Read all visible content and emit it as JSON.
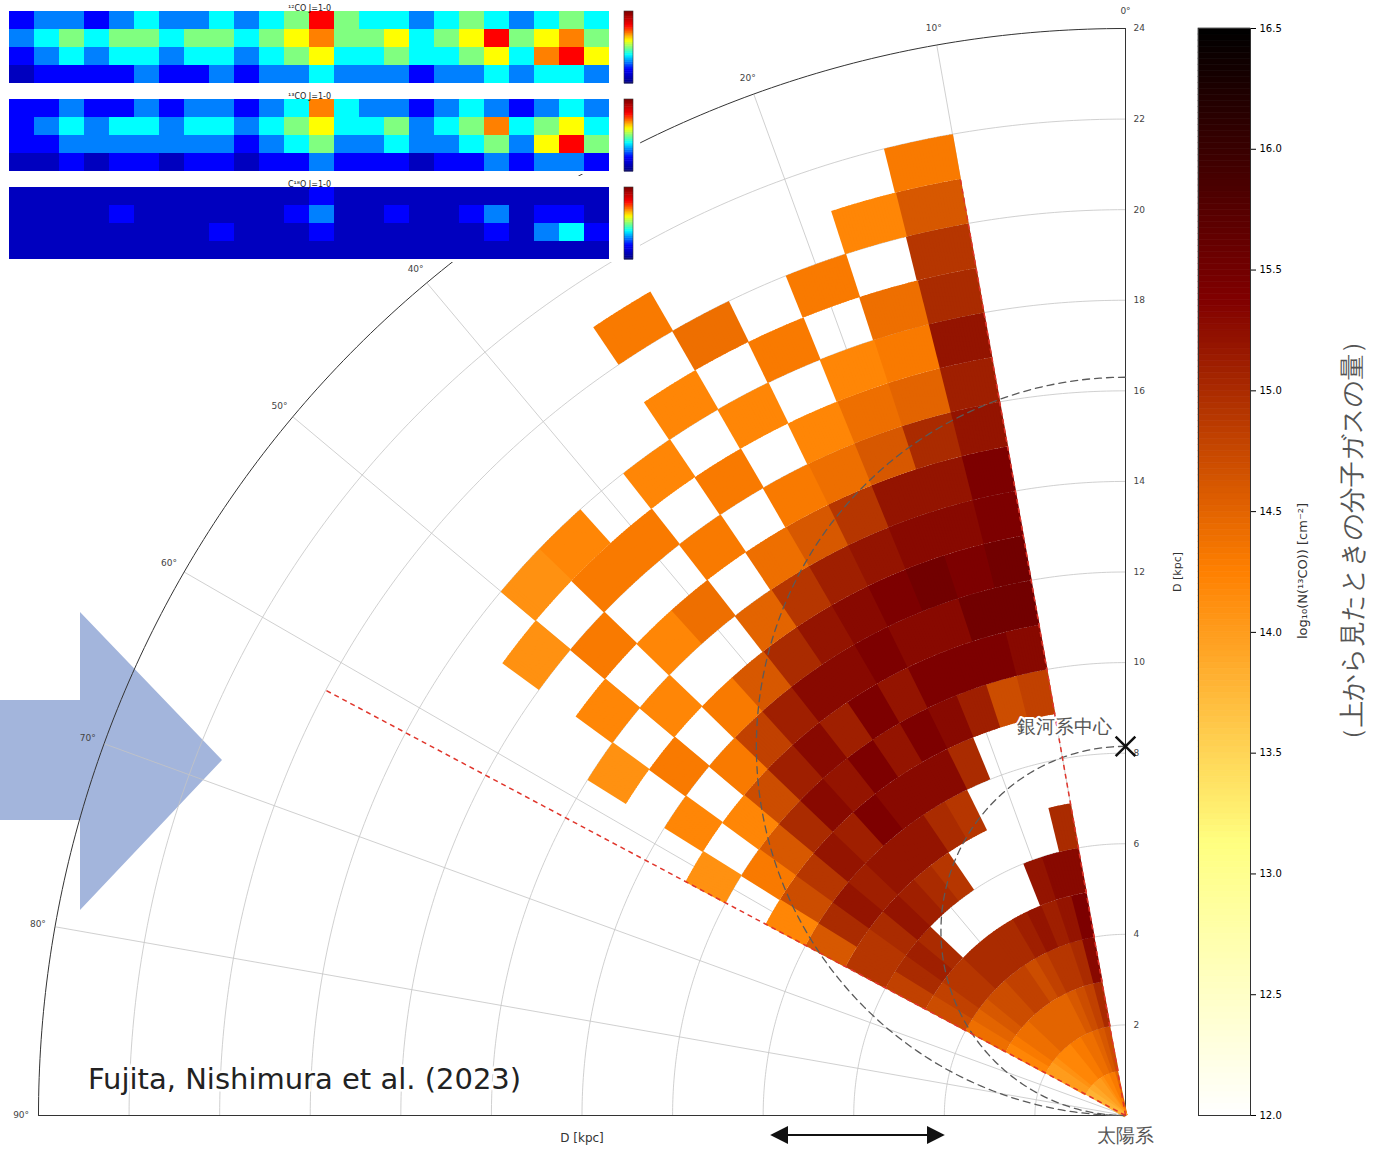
{
  "chart_data": [
    {
      "type": "polar_heatmap",
      "xlim": [
        0,
        90
      ],
      "xticks": [
        {
          "value": 0,
          "label": "0°"
        },
        {
          "value": 10,
          "label": "10°"
        },
        {
          "value": 20,
          "label": "20°"
        },
        {
          "value": 40,
          "label": "40°"
        },
        {
          "value": 50,
          "label": "50°"
        },
        {
          "value": 60,
          "label": "60°"
        },
        {
          "value": 70,
          "label": "70°"
        },
        {
          "value": 80,
          "label": "80°"
        },
        {
          "value": 90,
          "label": "90°"
        }
      ],
      "ylim": [
        0,
        24
      ],
      "yticks": [
        2,
        4,
        6,
        8,
        10,
        12,
        14,
        16,
        18,
        20,
        22,
        24
      ],
      "ylabel": "D [kpc]",
      "grid": true,
      "cell_l": [
        12,
        16,
        20,
        24,
        28,
        32,
        36,
        40,
        44,
        48,
        52,
        56,
        60
      ],
      "cell_d": [
        0.5,
        1.5,
        2.5,
        3.5,
        4.5,
        5.5,
        6.5,
        7.5,
        8.5,
        9.5,
        10.5,
        11.5,
        12.5,
        13.5,
        14.5,
        15.5,
        16.5,
        17.5,
        18.5,
        19.5,
        20.5,
        21.5
      ],
      "values": [
        [
          14.5,
          14.7,
          15.0,
          15.3,
          15.4,
          15.3,
          15.0,
          null,
          null,
          14.8,
          15.3,
          15.5,
          15.5,
          15.4,
          15.4,
          15.2,
          15.1,
          15.2,
          15.0,
          14.9,
          14.6,
          14.3
        ],
        [
          14.3,
          14.6,
          14.8,
          15.0,
          15.2,
          15.3,
          null,
          null,
          null,
          14.7,
          15.4,
          15.5,
          15.4,
          15.3,
          15.2,
          15.0,
          14.5,
          14.3,
          14.4,
          null,
          14.2,
          null
        ],
        [
          14.3,
          14.5,
          14.7,
          14.9,
          15.1,
          15.2,
          null,
          null,
          null,
          15.1,
          15.4,
          15.3,
          15.5,
          15.3,
          15.2,
          14.6,
          14.4,
          14.2,
          null,
          14.3,
          null,
          null
        ],
        [
          14.2,
          14.4,
          14.6,
          14.9,
          15.2,
          null,
          null,
          null,
          15.0,
          15.3,
          15.4,
          15.3,
          15.4,
          15.2,
          14.9,
          14.4,
          14.2,
          null,
          14.3,
          null,
          null,
          null
        ],
        [
          14.2,
          14.4,
          14.5,
          14.8,
          15.1,
          null,
          null,
          14.9,
          15.3,
          15.4,
          15.2,
          15.4,
          15.3,
          15.1,
          14.6,
          14.3,
          null,
          14.2,
          null,
          14.4,
          null,
          null
        ],
        [
          14.1,
          14.3,
          14.5,
          14.7,
          15.0,
          null,
          null,
          15.0,
          15.3,
          15.2,
          15.4,
          15.3,
          15.2,
          14.9,
          14.4,
          null,
          14.3,
          null,
          14.2,
          null,
          14.3,
          null
        ],
        [
          14.0,
          14.3,
          14.5,
          14.8,
          15.0,
          null,
          14.9,
          15.2,
          15.3,
          15.4,
          15.1,
          15.3,
          15.0,
          14.5,
          null,
          14.3,
          null,
          14.2,
          null,
          null,
          null,
          null
        ],
        [
          14.0,
          14.2,
          14.5,
          14.8,
          15.0,
          null,
          15.0,
          15.2,
          15.4,
          15.2,
          15.3,
          15.1,
          14.6,
          null,
          14.4,
          null,
          14.3,
          null,
          null,
          null,
          null,
          null
        ],
        [
          14.0,
          14.2,
          14.5,
          14.7,
          15.0,
          null,
          15.1,
          15.2,
          15.1,
          15.3,
          15.1,
          14.8,
          14.3,
          null,
          14.2,
          null,
          14.3,
          14.2,
          null,
          null,
          null,
          null
        ],
        [
          13.9,
          14.2,
          14.4,
          14.7,
          14.9,
          15.0,
          15.2,
          15.1,
          15.2,
          15.0,
          14.7,
          14.3,
          null,
          14.2,
          null,
          14.3,
          null,
          14.1,
          null,
          null,
          null,
          null
        ],
        [
          13.9,
          14.1,
          14.4,
          14.6,
          14.9,
          15.1,
          15.0,
          15.2,
          14.9,
          14.6,
          14.2,
          null,
          14.3,
          null,
          14.2,
          null,
          14.1,
          null,
          null,
          null,
          null,
          null
        ],
        [
          13.8,
          14.0,
          14.3,
          14.5,
          14.8,
          15.0,
          14.9,
          15.0,
          14.7,
          14.3,
          null,
          14.2,
          null,
          14.1,
          null,
          null,
          null,
          null,
          null,
          null,
          null,
          null
        ],
        [
          13.8,
          14.0,
          14.2,
          14.4,
          14.7,
          14.8,
          14.9,
          14.6,
          14.2,
          null,
          14.1,
          null,
          null,
          null,
          null,
          null,
          null,
          null,
          null,
          null,
          null,
          null
        ]
      ],
      "colorbar": {
        "lim": [
          12,
          16.5
        ],
        "ticks": [
          {
            "value": 12,
            "label": "12.0"
          },
          {
            "value": 12.5,
            "label": "12.5"
          },
          {
            "value": 13,
            "label": "13.0"
          },
          {
            "value": 13.5,
            "label": "13.5"
          },
          {
            "value": 14,
            "label": "14.0"
          },
          {
            "value": 14.5,
            "label": "14.5"
          },
          {
            "value": 15,
            "label": "15.0"
          },
          {
            "value": 15.5,
            "label": "15.5"
          },
          {
            "value": 16,
            "label": "16.0"
          },
          {
            "value": 16.5,
            "label": "16.5"
          }
        ],
        "label": "log₁₀(N(¹³CO)) [cm⁻²]",
        "caption": "（上から見たときの分子ガスの量）"
      },
      "survey_edges": [
        {
          "l": 10,
          "d": 21
        },
        {
          "l": 62,
          "d": 20
        }
      ],
      "galactic_center": {
        "l": 0,
        "d": 8.15,
        "label": "銀河系中心"
      },
      "sun": {
        "l": 0,
        "d": 0,
        "label": "太陽系"
      },
      "credit": "Fujita, Nishimura et al. (2023)"
    },
    {
      "type": "heatmap",
      "title": "¹²CO J=1-0",
      "clim": [
        0,
        10
      ],
      "values": [
        [
          2,
          3,
          3,
          2,
          3,
          4,
          3,
          3,
          4,
          3,
          4,
          5,
          8,
          5,
          4,
          4,
          3,
          4,
          5,
          4,
          3,
          4,
          5,
          4
        ],
        [
          3,
          4,
          5,
          4,
          5,
          5,
          4,
          5,
          5,
          4,
          5,
          6,
          7,
          5,
          5,
          6,
          4,
          5,
          6,
          8,
          5,
          6,
          7,
          5
        ],
        [
          2,
          3,
          4,
          3,
          4,
          4,
          3,
          4,
          4,
          3,
          4,
          5,
          6,
          4,
          4,
          5,
          4,
          4,
          5,
          6,
          4,
          7,
          8,
          6
        ],
        [
          1,
          2,
          2,
          2,
          2,
          3,
          2,
          2,
          3,
          2,
          3,
          3,
          4,
          3,
          3,
          3,
          2,
          3,
          3,
          4,
          3,
          4,
          4,
          3
        ]
      ]
    },
    {
      "type": "heatmap",
      "title": "¹³CO J=1-0",
      "clim": [
        0,
        10
      ],
      "values": [
        [
          2,
          2,
          3,
          2,
          2,
          3,
          2,
          3,
          3,
          2,
          3,
          4,
          7,
          4,
          3,
          3,
          2,
          3,
          4,
          3,
          2,
          3,
          4,
          3
        ],
        [
          2,
          3,
          4,
          3,
          4,
          4,
          3,
          4,
          4,
          3,
          4,
          5,
          6,
          4,
          4,
          5,
          3,
          4,
          5,
          7,
          4,
          5,
          6,
          4
        ],
        [
          2,
          2,
          3,
          3,
          3,
          3,
          3,
          3,
          3,
          2,
          3,
          4,
          5,
          3,
          3,
          4,
          3,
          3,
          4,
          5,
          3,
          6,
          8,
          5
        ],
        [
          1,
          1,
          2,
          1,
          2,
          2,
          1,
          2,
          2,
          1,
          2,
          2,
          3,
          2,
          2,
          2,
          1,
          2,
          2,
          3,
          2,
          3,
          3,
          2
        ]
      ]
    },
    {
      "type": "heatmap",
      "title": "C¹⁸O J=1-0",
      "clim": [
        0,
        10
      ],
      "values": [
        [
          1,
          1,
          1,
          1,
          1,
          1,
          1,
          1,
          1,
          1,
          1,
          1,
          2,
          1,
          1,
          1,
          1,
          1,
          1,
          1,
          1,
          1,
          1,
          1
        ],
        [
          1,
          1,
          1,
          1,
          2,
          1,
          1,
          1,
          1,
          1,
          1,
          2,
          3,
          1,
          1,
          2,
          1,
          1,
          2,
          3,
          1,
          2,
          2,
          1
        ],
        [
          1,
          1,
          1,
          1,
          1,
          1,
          1,
          1,
          2,
          1,
          1,
          1,
          2,
          1,
          1,
          1,
          1,
          1,
          1,
          2,
          1,
          3,
          4,
          2
        ],
        [
          1,
          1,
          1,
          1,
          1,
          1,
          1,
          1,
          1,
          1,
          1,
          1,
          1,
          1,
          1,
          1,
          1,
          1,
          1,
          1,
          1,
          1,
          1,
          1
        ]
      ]
    }
  ]
}
